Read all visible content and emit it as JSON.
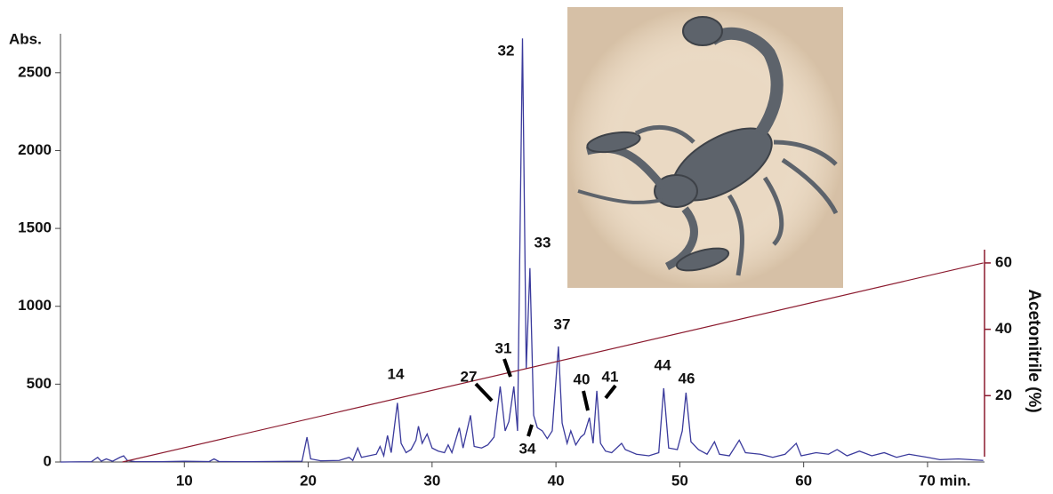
{
  "chart_data": {
    "type": "line",
    "ylabel": "Abs.",
    "y2label": "Acetonitrile (%)",
    "xlim": [
      0,
      74.6
    ],
    "ylim": [
      0,
      2750
    ],
    "y2lim": [
      0,
      64
    ],
    "xticks": [
      10,
      20,
      30,
      40,
      50,
      60,
      {
        "value": 70,
        "label": "70 min."
      }
    ],
    "yticks": [
      0,
      500,
      1000,
      1500,
      2000,
      2500
    ],
    "y2ticks": [
      20,
      40,
      60
    ],
    "peak_labels": [
      "14",
      "27",
      "31",
      "32",
      "33",
      "34",
      "37",
      "40",
      "41",
      "44",
      "46"
    ],
    "series": [
      {
        "color": "#3a3a9c",
        "x": [
          0,
          2.5,
          3,
          3.3,
          3.7,
          4.2,
          4.8,
          5.1,
          5.4,
          6,
          8,
          10,
          12,
          12.4,
          12.8,
          15,
          19.5,
          19.9,
          20.2,
          21,
          22.5,
          23.3,
          23.6,
          24,
          24.3,
          25.5,
          25.8,
          26.1,
          26.4,
          26.7,
          27.2,
          27.5,
          27.9,
          28.3,
          28.7,
          28.9,
          29.2,
          29.6,
          30,
          30.5,
          31,
          31.3,
          31.6,
          32.2,
          32.5,
          33.1,
          33.4,
          34,
          34.5,
          35,
          35.5,
          35.9,
          36.2,
          36.6,
          36.9,
          37.3,
          37.6,
          37.9,
          38.2,
          38.5,
          38.9,
          39.3,
          39.7,
          40.2,
          40.5,
          40.9,
          41.2,
          41.6,
          42,
          42.3,
          42.7,
          43,
          43.3,
          43.6,
          44,
          44.5,
          45.3,
          45.6,
          46.5,
          47.5,
          48.3,
          48.7,
          49.1,
          49.8,
          50.2,
          50.5,
          50.9,
          51.5,
          52.2,
          52.8,
          53.2,
          54,
          54.8,
          55.3,
          56.5,
          57.5,
          58.5,
          59.4,
          59.8,
          61,
          62,
          62.7,
          63.5,
          64.5,
          65.5,
          66.5,
          67.5,
          68.5,
          70,
          71,
          72.5,
          74.5
        ],
        "values": [
          0,
          2,
          30,
          5,
          20,
          5,
          30,
          40,
          10,
          3,
          2,
          5,
          3,
          20,
          3,
          2,
          5,
          160,
          20,
          8,
          10,
          30,
          10,
          90,
          30,
          50,
          100,
          40,
          170,
          60,
          380,
          120,
          60,
          80,
          140,
          230,
          120,
          180,
          90,
          70,
          60,
          110,
          60,
          220,
          90,
          300,
          100,
          90,
          110,
          160,
          485,
          200,
          260,
          485,
          200,
          2720,
          600,
          1245,
          300,
          220,
          200,
          150,
          200,
          742,
          250,
          120,
          200,
          110,
          160,
          180,
          285,
          120,
          457,
          120,
          70,
          60,
          120,
          80,
          50,
          40,
          60,
          474,
          90,
          80,
          200,
          445,
          130,
          80,
          50,
          130,
          50,
          40,
          140,
          60,
          50,
          30,
          50,
          120,
          40,
          60,
          50,
          80,
          40,
          70,
          40,
          60,
          30,
          50,
          30,
          15,
          20,
          10
        ]
      },
      {
        "color": "#8b1a2e",
        "axis": "y2",
        "x": [
          5,
          74.5
        ],
        "values": [
          0,
          60
        ]
      }
    ]
  }
}
